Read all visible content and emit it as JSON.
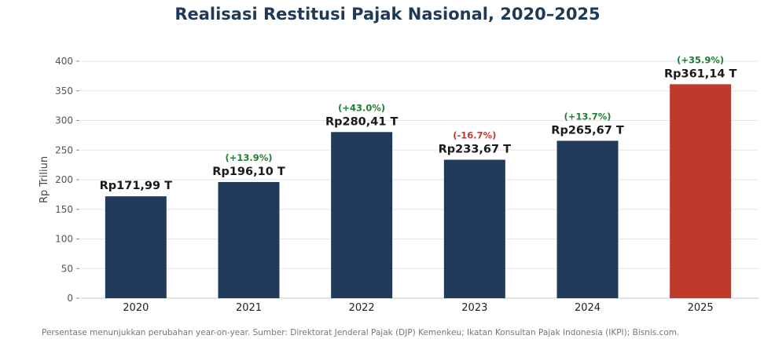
{
  "chart_data": {
    "type": "bar",
    "title": "Realisasi Restitusi Pajak Nasional, 2020–2025",
    "xlabel": "",
    "ylabel": "Rp Triliun",
    "ylim": [
      0,
      400
    ],
    "yticks": [
      "0",
      "50",
      "100",
      "150",
      "200",
      "250",
      "300",
      "350",
      "400"
    ],
    "grid": "horizontal",
    "categories": [
      "2020",
      "2021",
      "2022",
      "2023",
      "2024",
      "2025"
    ],
    "values": [
      171.99,
      196.1,
      280.41,
      233.67,
      265.67,
      361.14
    ],
    "value_labels": [
      "Rp171,99 T",
      "Rp196,10 T",
      "Rp280,41 T",
      "Rp233,67 T",
      "Rp265,67 T",
      "Rp361,14 T"
    ],
    "change_labels": [
      "",
      "(+13.9%)",
      "(+43.0%)",
      "(-16.7%)",
      "(+13.7%)",
      "(+35.9%)"
    ],
    "bar_colors": [
      "#213a59",
      "#213a59",
      "#213a59",
      "#213a59",
      "#213a59",
      "#c0392b"
    ],
    "colors": {
      "bar": "#213a59",
      "highlight_bar": "#c0392b",
      "positive_change": "#1e7e34",
      "negative_change": "#c0392b"
    }
  },
  "footnote": "Persentase menunjukkan perubahan year-on-year. Sumber: Direktorat Jenderal Pajak (DJP) Kemenkeu; Ikatan Konsultan Pajak Indonesia (IKPI); Bisnis.com."
}
